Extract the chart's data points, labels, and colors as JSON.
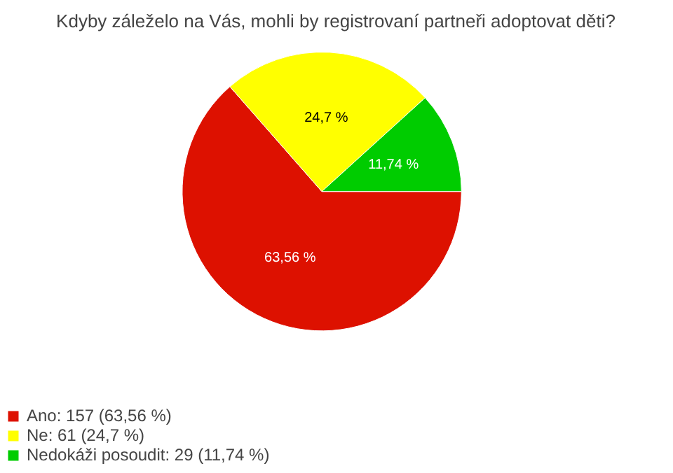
{
  "chart_data": {
    "type": "pie",
    "title": "Kdyby záleželo na Vás, mohli by registrovaní partneři adoptovat děti?",
    "categories": [
      "Ano: 157 (63,56 %)",
      "Ne: 61 (24,7 %)",
      "Nedokáži posoudit: 29 (11,74 %)"
    ],
    "values": [
      63.56,
      24.7,
      11.74
    ],
    "value_labels": [
      "63,56 %",
      "24,7 %",
      "11,74 %"
    ],
    "colors": [
      "#dd1100",
      "#ffff00",
      "#00cc00"
    ],
    "legend": "bottom left"
  }
}
